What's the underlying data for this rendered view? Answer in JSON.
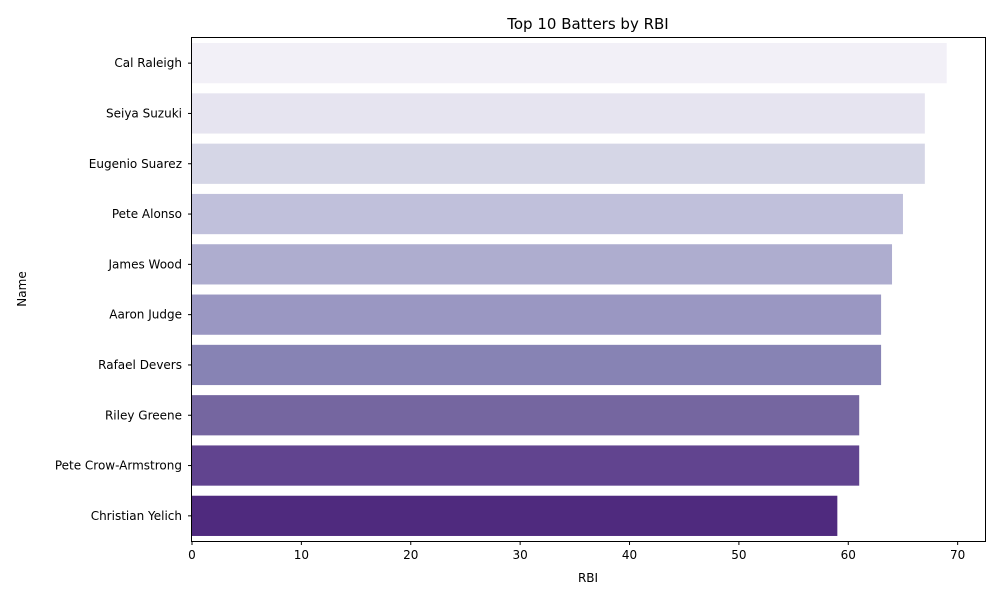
{
  "chart_data": {
    "type": "bar",
    "orientation": "horizontal",
    "title": "Top 10 Batters by RBI",
    "xlabel": "RBI",
    "ylabel": "Name",
    "xlim": [
      0,
      72.5
    ],
    "xticks": [
      0,
      10,
      20,
      30,
      40,
      50,
      60,
      70
    ],
    "grid": false,
    "categories": [
      "Cal Raleigh",
      "Seiya Suzuki",
      "Eugenio Suarez",
      "Pete Alonso",
      "James Wood",
      "Aaron Judge",
      "Rafael Devers",
      "Riley Greene",
      "Pete Crow-Armstrong",
      "Christian Yelich"
    ],
    "values": [
      69,
      67,
      67,
      65,
      64,
      63,
      63,
      61,
      61,
      59
    ],
    "colors": [
      "#f2f0f7",
      "#e6e4f0",
      "#d5d6e6",
      "#c0c0db",
      "#aeadcf",
      "#9a97c2",
      "#8783b4",
      "#7566a0",
      "#61448f",
      "#4f2a7e"
    ]
  }
}
